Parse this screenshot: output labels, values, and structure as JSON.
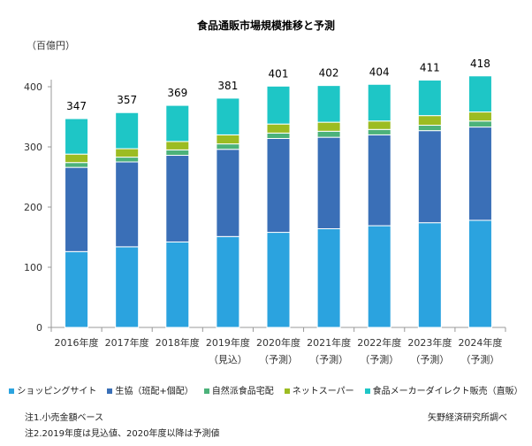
{
  "chart_data": {
    "type": "bar",
    "stacked": true,
    "title": "食品通販市場規模推移と予測",
    "ylabel": "（百億円）",
    "ylim": [
      0,
      400
    ],
    "yticks": [
      0,
      100,
      200,
      300,
      400
    ],
    "grid": false,
    "legend_position": "bottom",
    "categories": [
      "2016年度",
      "2017年度",
      "2018年度",
      "2019年度",
      "2020年度",
      "2021年度",
      "2022年度",
      "2023年度",
      "2024年度"
    ],
    "category_sublabels": [
      "",
      "",
      "",
      "（見込）",
      "（予測）",
      "（予測）",
      "（予測）",
      "（予測）",
      "（予測）"
    ],
    "totals": [
      347,
      357,
      369,
      381,
      401,
      402,
      404,
      411,
      418
    ],
    "series": [
      {
        "name": "ショッピングサイト",
        "color": "#2ba3df",
        "values": [
          126,
          134,
          142,
          151,
          158,
          164,
          169,
          174,
          178
        ]
      },
      {
        "name": "生協（班配+個配）",
        "color": "#3a6fb7",
        "values": [
          140,
          141,
          144,
          145,
          156,
          152,
          151,
          153,
          155
        ]
      },
      {
        "name": "自然派食品宅配",
        "color": "#4cb27a",
        "values": [
          8,
          8,
          9,
          9,
          9,
          10,
          9,
          9,
          10
        ]
      },
      {
        "name": "ネットスーパー",
        "color": "#9cbc22",
        "values": [
          14,
          14,
          14,
          15,
          15,
          15,
          14,
          16,
          15
        ]
      },
      {
        "name": "食品メーカーダイレクト販売（直販）",
        "color": "#1ec6c6",
        "values": [
          59,
          60,
          60,
          61,
          63,
          61,
          61,
          59,
          60
        ]
      }
    ]
  },
  "notes": [
    "注1.小売金額ベース",
    "注2.2019年度は見込値、2020年度以降は予測値"
  ],
  "source": "矢野経済研究所調べ"
}
